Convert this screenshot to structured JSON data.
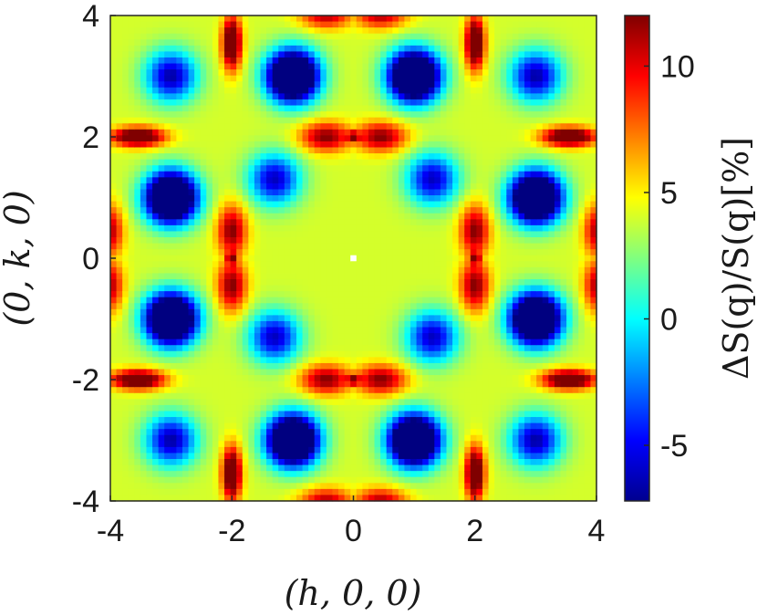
{
  "chart_data": {
    "type": "heatmap",
    "title": "",
    "xlabel": "(h, 0, 0)",
    "ylabel": "(0, k, 0)",
    "colorbar_label": "ΔS(q)/S(q)[%]",
    "xlim": [
      -4,
      4
    ],
    "ylim": [
      -4,
      4
    ],
    "xticks": [
      -4,
      -2,
      0,
      2,
      4
    ],
    "yticks": [
      -4,
      -2,
      0,
      2,
      4
    ],
    "xtick_labels": [
      "-4",
      "-2",
      "0",
      "2",
      "4"
    ],
    "ytick_labels": [
      "-4",
      "-2",
      "0",
      "2",
      "4"
    ],
    "clim": [
      -7.2,
      12
    ],
    "colorbar_ticks": [
      -5,
      0,
      5,
      10
    ],
    "colorbar_tick_labels": [
      "-5",
      "0",
      "5",
      "10"
    ],
    "colormap": "jet",
    "grid_resolution": 81,
    "background_level": 4.0,
    "features": [
      {
        "kind": "peak",
        "h": 0.45,
        "k": 2.0,
        "value": 12,
        "sh": 0.3,
        "sk": 0.17
      },
      {
        "kind": "peak",
        "h": 0.45,
        "k": 4.0,
        "value": 11,
        "sh": 0.3,
        "sk": 0.15
      },
      {
        "kind": "peak",
        "h": 0.0,
        "k": 2.0,
        "value": 12,
        "sh": 0.06,
        "sk": 0.06
      },
      {
        "kind": "peak",
        "h": 2.0,
        "k": 3.6,
        "value": 10,
        "sh": 0.1,
        "sk": 0.3
      },
      {
        "kind": "peak",
        "h": 3.5,
        "k": 2.0,
        "value": 10,
        "sh": 0.3,
        "sk": 0.12
      },
      {
        "kind": "trough",
        "h": 1.0,
        "k": 3.0,
        "value": -6.5,
        "sh": 0.3,
        "sk": 0.3
      },
      {
        "kind": "trough",
        "h": 3.0,
        "k": 3.0,
        "value": -6.5,
        "sh": 0.3,
        "sk": 0.3
      },
      {
        "kind": "trough",
        "h": 1.3,
        "k": 1.3,
        "value": -6.0,
        "sh": 0.3,
        "sk": 0.3
      },
      {
        "kind": "trough",
        "h": 3.0,
        "k": 1.0,
        "value": -6.5,
        "sh": 0.3,
        "sk": 0.3
      },
      {
        "kind": "mask",
        "h": 0.0,
        "k": 0.0,
        "value": null
      }
    ]
  }
}
